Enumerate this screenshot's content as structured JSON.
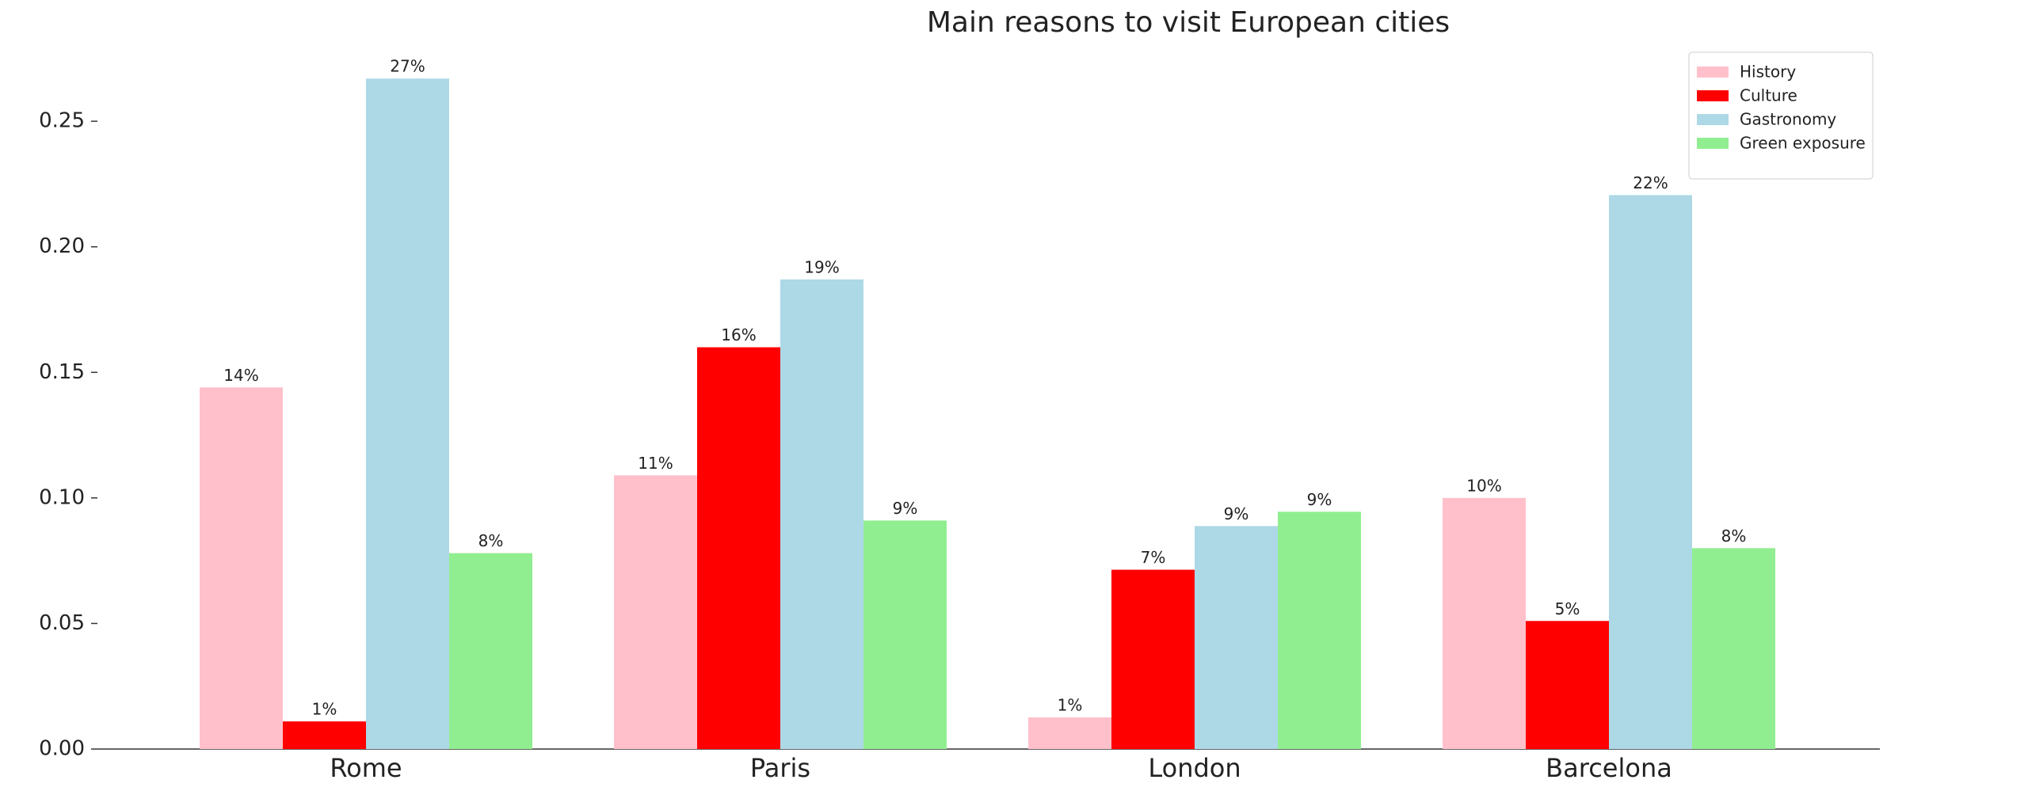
{
  "chart_data": {
    "type": "bar",
    "title": "Main reasons to visit European cities",
    "categories": [
      "Rome",
      "Paris",
      "London",
      "Barcelona"
    ],
    "series": [
      {
        "name": "History",
        "color": "#ffc0cb",
        "values": [
          0.144,
          0.109,
          0.0126,
          0.1
        ],
        "value_labels": [
          "14%",
          "11%",
          "1%",
          "10%"
        ]
      },
      {
        "name": "Culture",
        "color": "#ff0000",
        "values": [
          0.011,
          0.16,
          0.0714,
          0.051
        ],
        "value_labels": [
          "1%",
          "16%",
          "7%",
          "5%"
        ]
      },
      {
        "name": "Gastronomy",
        "color": "#add8e6",
        "values": [
          0.267,
          0.187,
          0.0888,
          0.2206
        ],
        "value_labels": [
          "27%",
          "19%",
          "9%",
          "22%"
        ]
      },
      {
        "name": "Green exposure",
        "color": "#90ee90",
        "values": [
          0.078,
          0.091,
          0.0945,
          0.08
        ],
        "value_labels": [
          "8%",
          "9%",
          "9%",
          "8%"
        ]
      }
    ],
    "ylim": [
      0,
      0.28
    ],
    "yticks": [
      {
        "value": 0,
        "label": "0.00"
      },
      {
        "value": 0.05,
        "label": "0.05"
      },
      {
        "value": 0.1,
        "label": "0.10"
      },
      {
        "value": 0.15,
        "label": "0.15"
      },
      {
        "value": 0.2,
        "label": "0.20"
      },
      {
        "value": 0.25,
        "label": "0.25"
      }
    ],
    "legend": "upper right"
  }
}
